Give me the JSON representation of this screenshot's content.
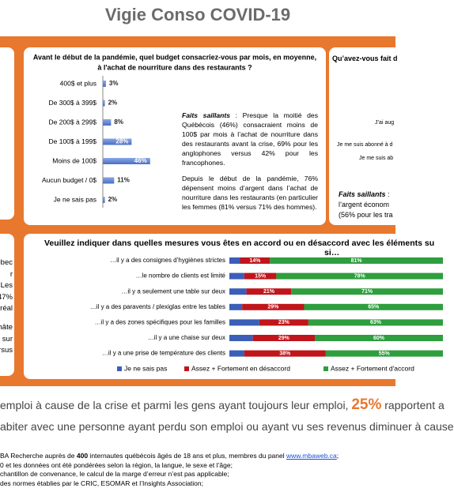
{
  "header": {
    "title": "Vigie Conso COVID-19"
  },
  "chart_data": [
    {
      "type": "hbar",
      "title": [
        "Avant le début de la pandémie, quel budget consacriez-vous par mois, en moyenne,",
        "à l'achat de nourriture dans des restaurants ?"
      ],
      "categories": [
        "400$ et plus",
        "De 300$ à 399$",
        "De 200$ à 299$",
        "De 100$ à 199$",
        "Moins de 100$",
        "Aucun budget / 0$",
        "Je ne sais pas"
      ],
      "values": [
        3,
        2,
        8,
        28,
        46,
        11,
        2
      ],
      "value_labels": [
        "3%",
        "2%",
        "8%",
        "28%",
        "46%",
        "11%",
        "2%"
      ],
      "color": "#4a6fc4"
    },
    {
      "type": "stacked-hbar",
      "title": [
        "Veuillez indiquer dans quelles mesures vous êtes en accord ou en désaccord avec les éléments su",
        "si…"
      ],
      "categories": [
        "…il y a des consignes d’hygiènes strictes",
        "…le nombre de clients est limité",
        "…il y a seulement une table sur deux",
        "…il y a des paravents / plexiglas entre les tables",
        "…il y a des zones spécifiques pour les familles",
        "…il y a une chaise sur deux",
        "…il y a une prise de température des clients"
      ],
      "series": [
        {
          "name": "Je ne sais pas",
          "color": "#3b5eb8",
          "values": [
            5,
            7,
            8,
            6,
            14,
            11,
            7
          ]
        },
        {
          "name": "Assez + Fortement en désaccord",
          "color": "#c0151b",
          "values": [
            14,
            15,
            21,
            29,
            23,
            29,
            38
          ],
          "value_labels": [
            "14%",
            "15%",
            "21%",
            "29%",
            "23%",
            "29%",
            "38%"
          ]
        },
        {
          "name": "Assez + Fortement d'accord",
          "color": "#2e9e3e",
          "values": [
            81,
            78,
            71,
            65,
            63,
            60,
            55
          ],
          "value_labels": [
            "81%",
            "78%",
            "71%",
            "65%",
            "63%",
            "60%",
            "55%"
          ]
        }
      ]
    }
  ],
  "highlights": {
    "label": "Faits saillants",
    "p1": " : Presque la moitié des Québécois (46%) consacraient moins de 100$ par mois à l’achat de nourriture dans des restaurants avant la crise, 69% pour les anglophones versus 42% pour les francophones.",
    "p2": "Depuis le début de la pandémie, 76% dépensent moins d’argent dans l’achat de nourriture dans les restaurants (en particulier les femmes (81% versus 71% des hommes)."
  },
  "right_card": {
    "title": "Qu’avez-vous fait d",
    "items": [
      "J’ai aug",
      "Je me suis abonné à d",
      "Je me suis ab"
    ],
    "label": "Faits saillants",
    "text1": " :",
    "text2": "l’argent économ",
    "text3": "(56% pour les tra"
  },
  "left_card": {
    "top": [
      "ébec",
      "r",
      "Les",
      "47%",
      "réal"
    ],
    "bottom": [
      "hâte",
      "sur",
      "rsus"
    ]
  },
  "body": {
    "line1": [
      "emploi à cause de la crise et parmi les gens ayant toujours leur emploi, ",
      "25%",
      " rapportent a"
    ],
    "line2": "abiter avec une personne ayant perdu son emploi ou ayant vu ses revenus diminuer à cause"
  },
  "footnotes": [
    [
      "BA Recherche auprès de ",
      "400",
      " internautes québécois âgés de 18 ans et plus, membres du panel ",
      "www.mbaweb.ca",
      ";"
    ],
    "0 et les données ont été pondérées selon la région, la langue, le sexe et l’âge;",
    "chantillon de convenance, le calcul de la marge d’erreur n’est pas applicable;",
    "des normes établies par le CRIC, ESOMAR et l’Insights Association;"
  ]
}
